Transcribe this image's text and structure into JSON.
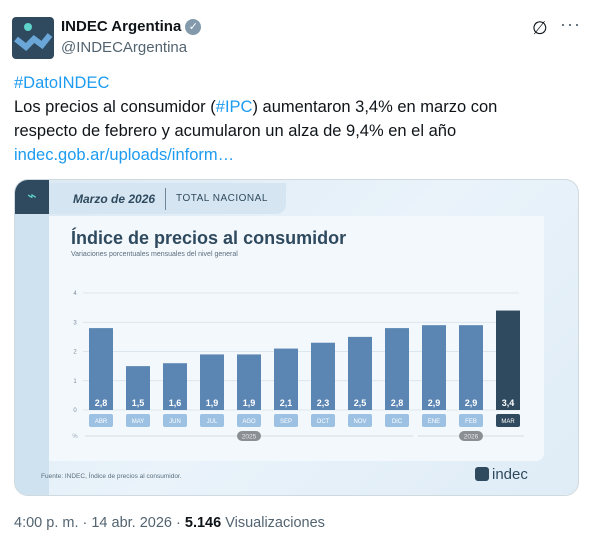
{
  "tweet": {
    "name": "INDEC Argentina",
    "handle": "@INDECArgentina",
    "hashtag": "#DatoINDEC",
    "text_1": "Los precios al consumidor (",
    "hashtag_ipc": "#IPC",
    "text_2": ") aumentaron 3,4% en marzo con",
    "text_3": "respecto de febrero y acumularon un alza de 9,4% en el año",
    "link": "indec.gob.ar/uploads/inform…",
    "time": "4:00 p. m. · 14 abr. 2026 · ",
    "views": "5.146",
    "views_label": " Visualizaciones"
  },
  "card": {
    "month": "Marzo de 2026",
    "scope": "TOTAL NACIONAL",
    "source": "Fuente: INDEC, Índice de precios al consumidor.",
    "logo": "indec"
  },
  "colors": {
    "bar": "#5b86b3",
    "bar_last": "#2f4a5e",
    "label": "#9cc1e3",
    "accent": "#1d9bf0"
  },
  "chart_data": {
    "type": "bar",
    "title": "Índice de precios al consumidor",
    "subtitle": "Variaciones porcentuales mensuales del nivel general",
    "categories": [
      "ABR",
      "MAY",
      "JUN",
      "JUL",
      "AGO",
      "SEP",
      "OCT",
      "NOV",
      "DIC",
      "ENE",
      "FEB",
      "MAR"
    ],
    "values": [
      2.8,
      1.5,
      1.6,
      1.9,
      1.9,
      2.1,
      2.3,
      2.5,
      2.8,
      2.9,
      2.9,
      3.4
    ],
    "value_labels": [
      "2,8",
      "1,5",
      "1,6",
      "1,9",
      "1,9",
      "2,1",
      "2,3",
      "2,5",
      "2,8",
      "2,9",
      "2,9",
      "3,4"
    ],
    "ylim": [
      0,
      4
    ],
    "yticks": [
      "0",
      "1",
      "2",
      "3",
      "4"
    ],
    "ylabel": "%",
    "grid": true,
    "year_groups": [
      {
        "label": "2025",
        "from": 0,
        "to": 8
      },
      {
        "label": "2026",
        "from": 9,
        "to": 11
      }
    ]
  }
}
